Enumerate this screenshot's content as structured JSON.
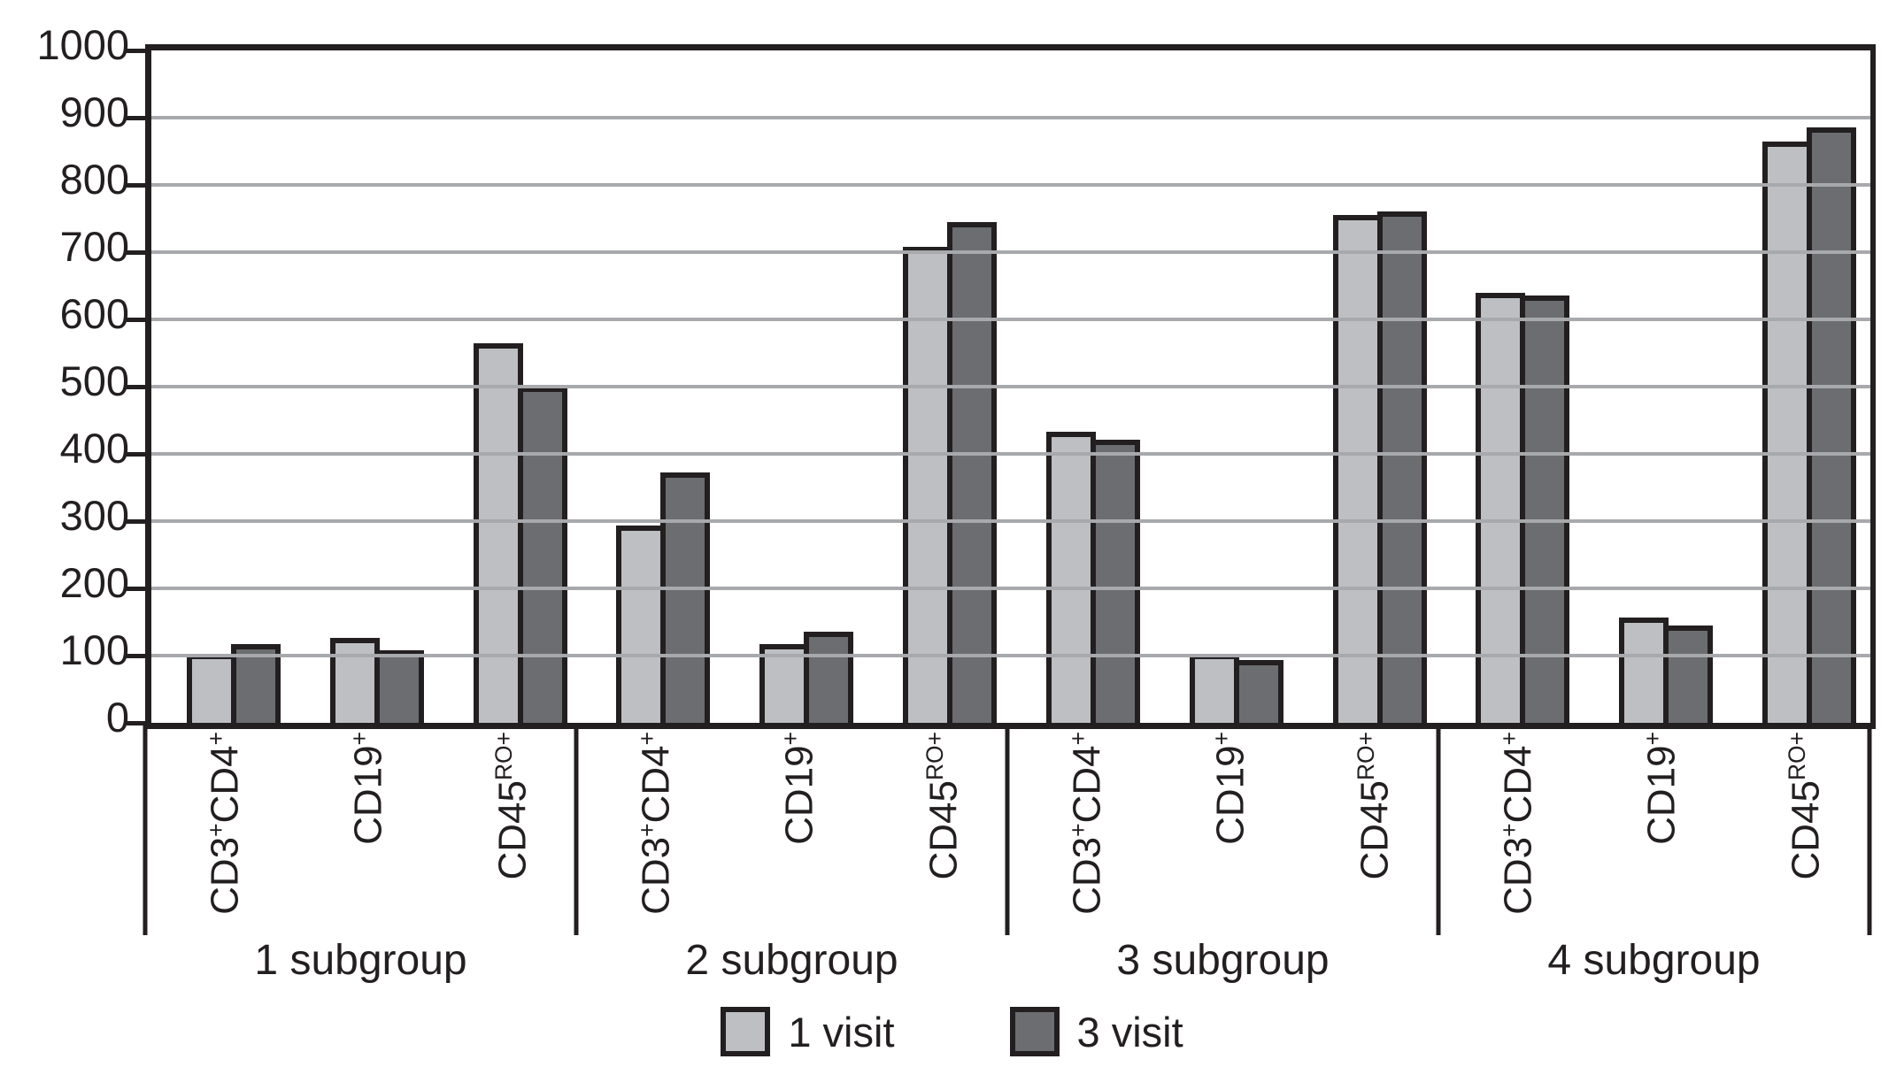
{
  "chart_data": {
    "type": "bar",
    "title": "",
    "xlabel": "",
    "ylabel": "",
    "ylim": [
      0,
      1000
    ],
    "ytick_step": 100,
    "ytick_labels": [
      "1000",
      "900",
      "800",
      "700",
      "600",
      "500",
      "400",
      "300",
      "200",
      "100",
      "0"
    ],
    "grid": "horizontal",
    "legend_position": "bottom-center",
    "categories": [
      {
        "name": "CD3+CD4+",
        "segments": [
          {
            "t": "CD3"
          },
          {
            "t": "+",
            "sup": true
          },
          {
            "t": "CD4"
          },
          {
            "t": "+",
            "sup": true
          }
        ]
      },
      {
        "name": "CD19+",
        "segments": [
          {
            "t": "CD19"
          },
          {
            "t": "+",
            "sup": true
          }
        ]
      },
      {
        "name": "CD45RO+",
        "segments": [
          {
            "t": "CD45"
          },
          {
            "t": "RO+",
            "sup": true
          }
        ]
      }
    ],
    "series": [
      {
        "name": "1 visit",
        "key": "visit1",
        "color": "#bdbfc3"
      },
      {
        "name": "3 visit",
        "key": "visit3",
        "color": "#6b6d70"
      }
    ],
    "groups": [
      {
        "label": "1 subgroup",
        "visit1": [
          102,
          126,
          565
        ],
        "visit3": [
          117,
          108,
          500
        ]
      },
      {
        "label": "2 subgroup",
        "visit1": [
          293,
          117,
          708
        ],
        "visit3": [
          372,
          136,
          745
        ]
      },
      {
        "label": "3 subgroup",
        "visit1": [
          433,
          102,
          755
        ],
        "visit3": [
          421,
          93,
          760
        ]
      },
      {
        "label": "4 subgroup",
        "visit1": [
          640,
          157,
          865
        ],
        "visit3": [
          635,
          145,
          885
        ]
      }
    ],
    "colors": {
      "bar_light": "#bdbfc3",
      "bar_dark": "#6b6d70",
      "outline": "#231f20",
      "gridline": "#a7a9ac",
      "background": "#ffffff"
    }
  }
}
